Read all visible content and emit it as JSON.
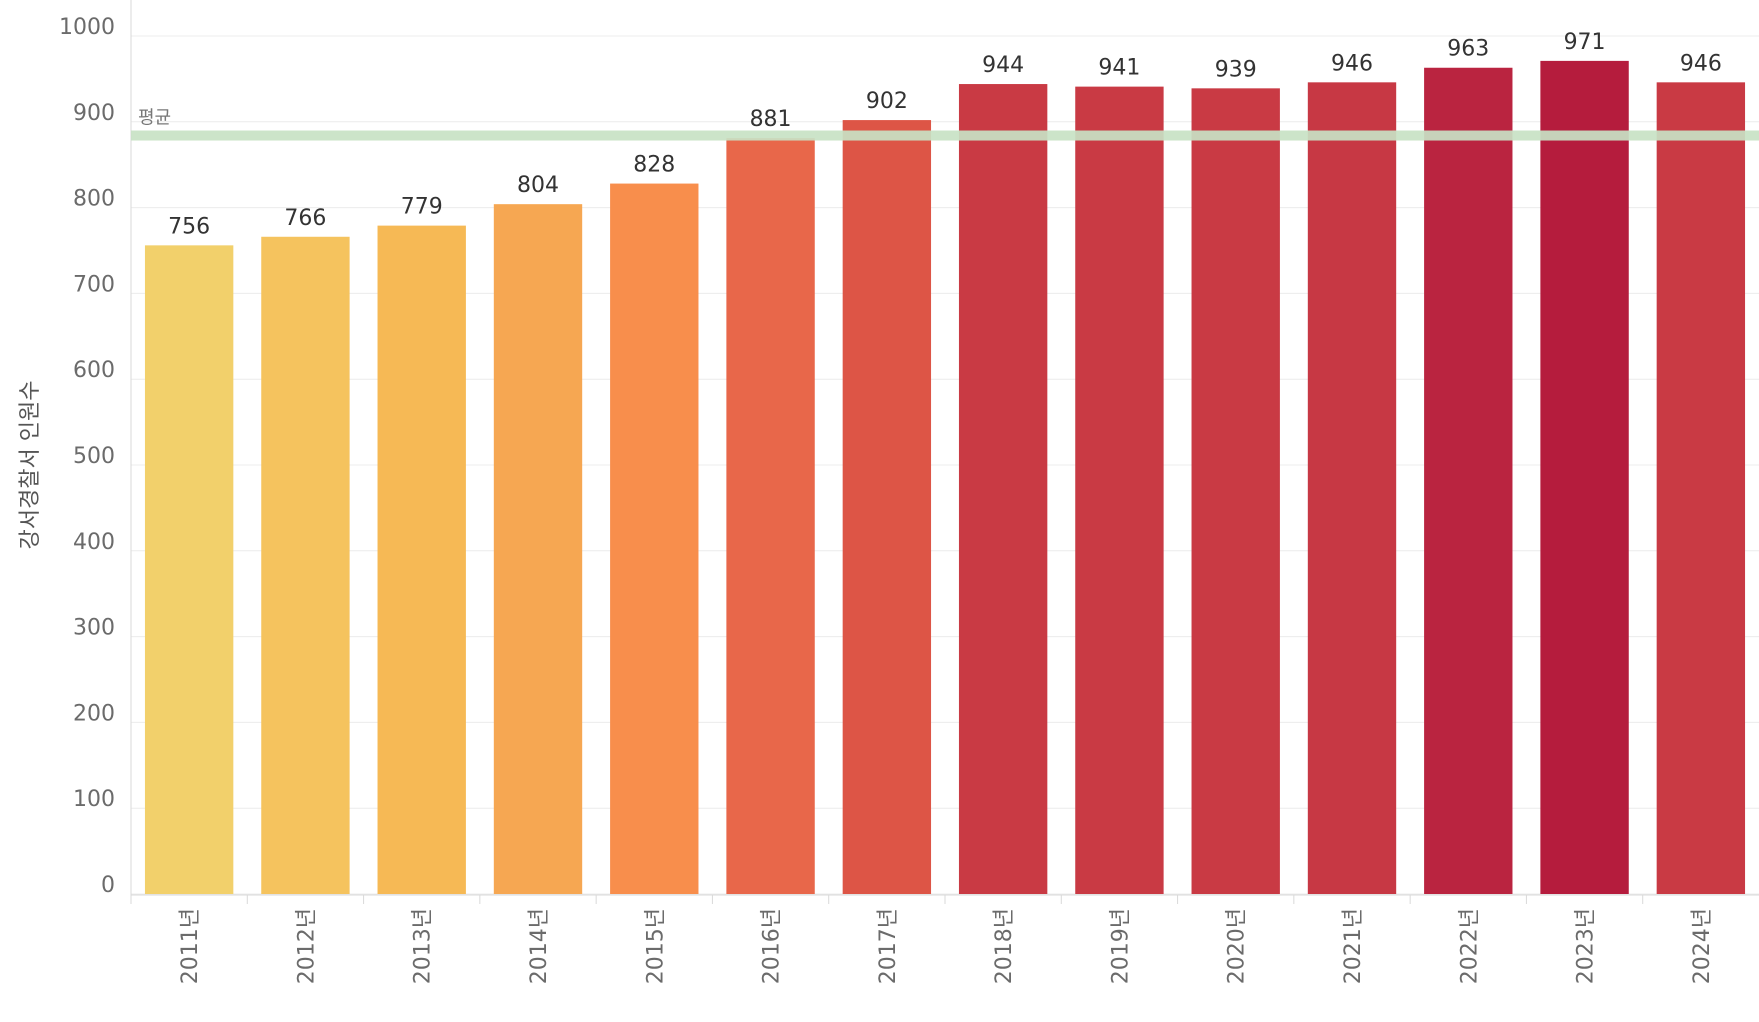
{
  "chart_data": {
    "type": "bar",
    "categories": [
      "2011년",
      "2012년",
      "2013년",
      "2014년",
      "2015년",
      "2016년",
      "2017년",
      "2018년",
      "2019년",
      "2020년",
      "2021년",
      "2022년",
      "2023년",
      "2024년"
    ],
    "values": [
      756,
      766,
      779,
      804,
      828,
      881,
      902,
      944,
      941,
      939,
      946,
      963,
      971,
      946
    ],
    "ylabel": "강서경찰서 인원수",
    "xlabel": "",
    "ylim": [
      0,
      1000
    ],
    "yticks": [
      0,
      100,
      200,
      300,
      400,
      500,
      600,
      700,
      800,
      900,
      1000
    ],
    "reference_line": {
      "label": "평균",
      "value": 884,
      "color": "#c8e2c4"
    },
    "colors": [
      "#f2d06b",
      "#f5c35e",
      "#f6b955",
      "#f6a752",
      "#f88e4c",
      "#e8674a",
      "#dd5546",
      "#c93a44",
      "#c93a44",
      "#c93a44",
      "#c73844",
      "#ba2440",
      "#b51c3d",
      "#c93a44"
    ]
  }
}
